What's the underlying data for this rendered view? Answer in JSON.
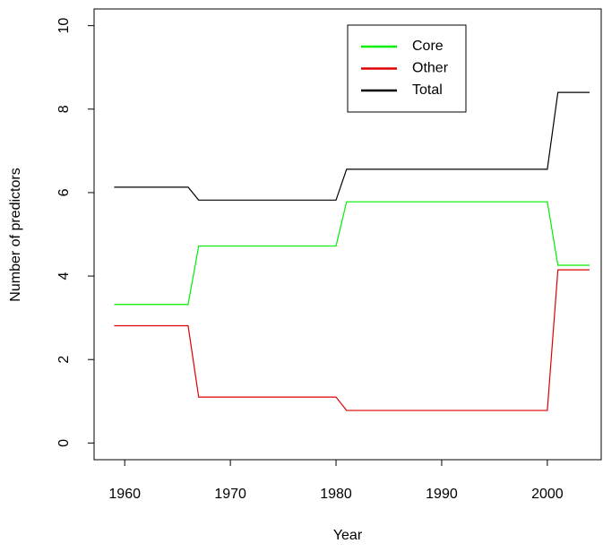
{
  "chart_data": {
    "type": "line",
    "xlabel": "Year",
    "ylabel": "Number of predictors",
    "x": [
      1959,
      1966,
      1967,
      1980,
      1981,
      2000,
      2001,
      2004
    ],
    "series": [
      {
        "name": "Core",
        "color": "#00ee00",
        "values": [
          3.32,
          3.32,
          4.72,
          4.72,
          5.78,
          5.78,
          4.26,
          4.26
        ]
      },
      {
        "name": "Other",
        "color": "#dd0000",
        "values": [
          2.81,
          2.81,
          1.1,
          1.1,
          0.78,
          0.78,
          4.15,
          4.15
        ]
      },
      {
        "name": "Total",
        "color": "#000000",
        "values": [
          6.13,
          6.13,
          5.82,
          5.82,
          6.56,
          6.56,
          8.4,
          8.4
        ]
      }
    ],
    "xlim": [
      1957.1,
      2005.1
    ],
    "xticks": [
      1960,
      1970,
      1980,
      1990,
      2000
    ],
    "ylim": [
      -0.4,
      10.4
    ],
    "yticks": [
      0,
      2,
      4,
      6,
      8,
      10
    ],
    "legend": "top-right"
  }
}
